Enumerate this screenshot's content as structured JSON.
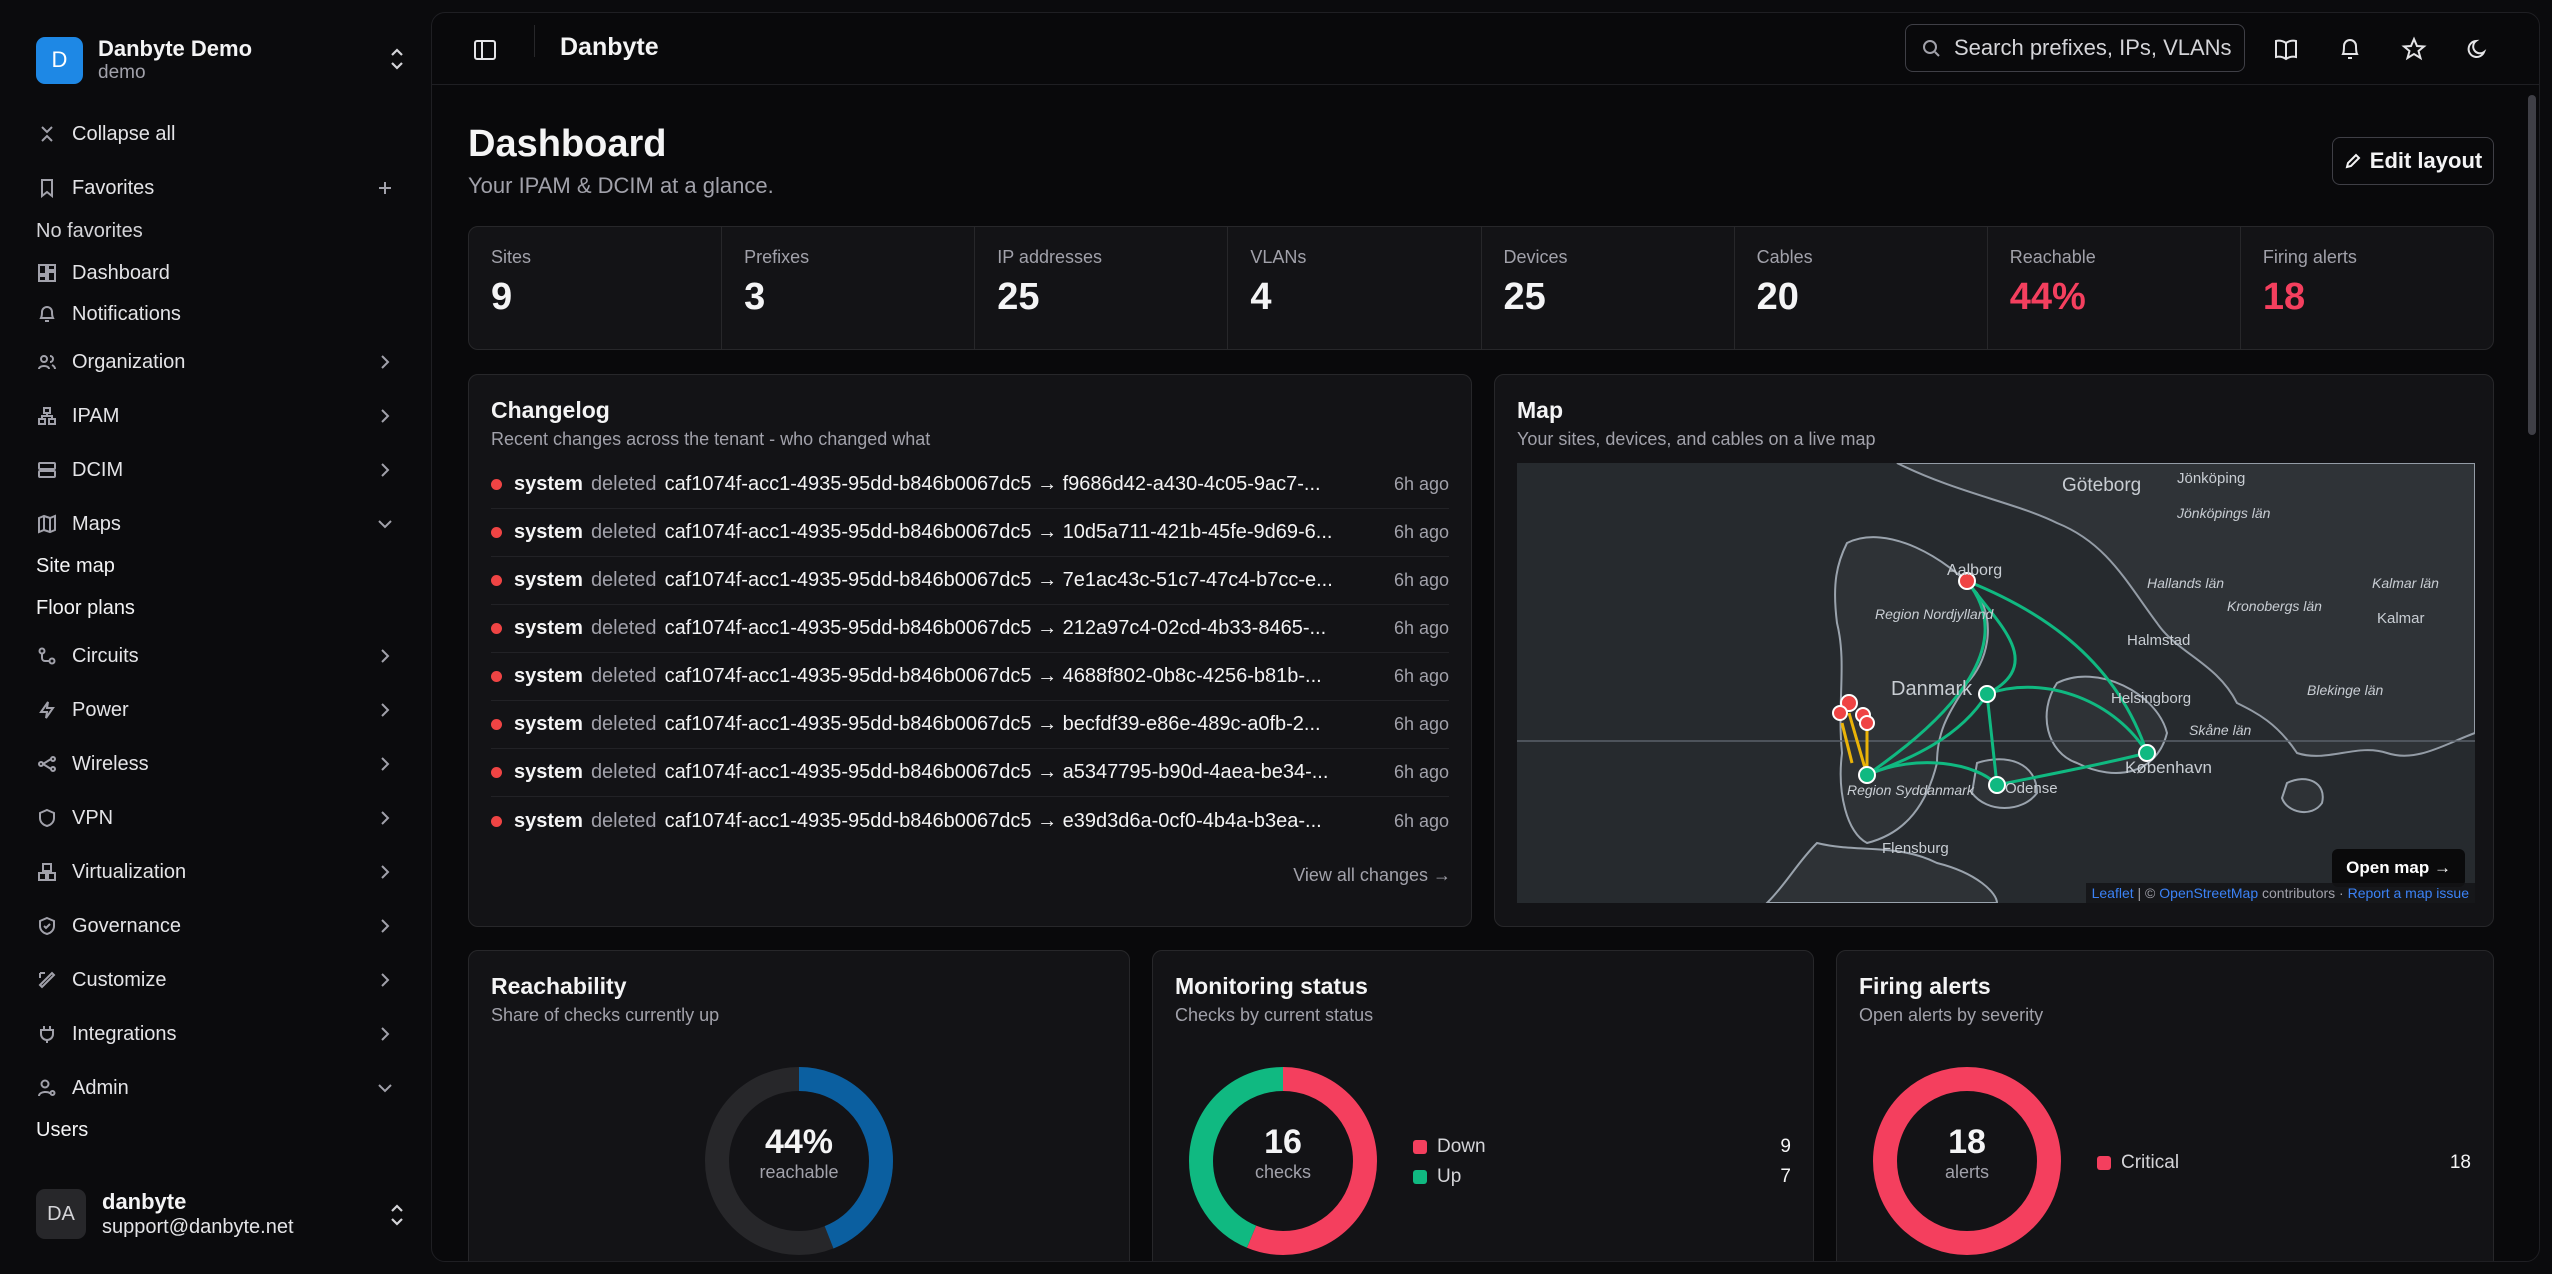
{
  "brand": {
    "logo_letter": "D",
    "name": "Danbyte Demo",
    "subtitle": "demo"
  },
  "sidebar": {
    "collapse_label": "Collapse all",
    "favorites_label": "Favorites",
    "no_favorites": "No favorites",
    "dashboard_label": "Dashboard",
    "notifications_label": "Notifications",
    "organization_label": "Organization",
    "ipam_label": "IPAM",
    "dcim_label": "DCIM",
    "maps_label": "Maps",
    "site_map_label": "Site map",
    "floor_plans_label": "Floor plans",
    "circuits_label": "Circuits",
    "power_label": "Power",
    "wireless_label": "Wireless",
    "vpn_label": "VPN",
    "virtualization_label": "Virtualization",
    "governance_label": "Governance",
    "customize_label": "Customize",
    "integrations_label": "Integrations",
    "admin_label": "Admin",
    "users_label": "Users"
  },
  "user": {
    "initials": "DA",
    "name": "danbyte",
    "email": "support@danbyte.net"
  },
  "topbar": {
    "title": "Danbyte",
    "search_placeholder": "Search prefixes, IPs, VLANs"
  },
  "page": {
    "title": "Dashboard",
    "subtitle": "Your IPAM & DCIM at a glance.",
    "edit_label": "Edit layout"
  },
  "stats": [
    {
      "label": "Sites",
      "value": "9"
    },
    {
      "label": "Prefixes",
      "value": "3"
    },
    {
      "label": "IP addresses",
      "value": "25"
    },
    {
      "label": "VLANs",
      "value": "4"
    },
    {
      "label": "Devices",
      "value": "25"
    },
    {
      "label": "Cables",
      "value": "20"
    },
    {
      "label": "Reachable",
      "value": "44%"
    },
    {
      "label": "Firing alerts",
      "value": "18"
    }
  ],
  "changelog": {
    "title": "Changelog",
    "subtitle": "Recent changes across the tenant - who changed what",
    "view_all": "View all changes →",
    "rows": [
      {
        "user": "system",
        "action": "deleted",
        "target": "caf1074f-acc1-4935-95dd-b846b0067dc5 → f9686d42-a430-4c05-9ac7-...",
        "time": "6h ago"
      },
      {
        "user": "system",
        "action": "deleted",
        "target": "caf1074f-acc1-4935-95dd-b846b0067dc5 → 10d5a711-421b-45fe-9d69-6...",
        "time": "6h ago"
      },
      {
        "user": "system",
        "action": "deleted",
        "target": "caf1074f-acc1-4935-95dd-b846b0067dc5 → 7e1ac43c-51c7-47c4-b7cc-e...",
        "time": "6h ago"
      },
      {
        "user": "system",
        "action": "deleted",
        "target": "caf1074f-acc1-4935-95dd-b846b0067dc5 → 212a97c4-02cd-4b33-8465-...",
        "time": "6h ago"
      },
      {
        "user": "system",
        "action": "deleted",
        "target": "caf1074f-acc1-4935-95dd-b846b0067dc5 → 4688f802-0b8c-4256-b81b-...",
        "time": "6h ago"
      },
      {
        "user": "system",
        "action": "deleted",
        "target": "caf1074f-acc1-4935-95dd-b846b0067dc5 → becfdf39-e86e-489c-a0fb-2...",
        "time": "6h ago"
      },
      {
        "user": "system",
        "action": "deleted",
        "target": "caf1074f-acc1-4935-95dd-b846b0067dc5 → a5347795-b90d-4aea-be34-...",
        "time": "6h ago"
      },
      {
        "user": "system",
        "action": "deleted",
        "target": "caf1074f-acc1-4935-95dd-b846b0067dc5 → e39d3d6a-0cf0-4b4a-b3ea-...",
        "time": "6h ago"
      }
    ]
  },
  "map": {
    "title": "Map",
    "subtitle": "Your sites, devices, and cables on a live map",
    "open_label": "Open map →",
    "labels": {
      "goteborg": "Göteborg",
      "jonkoping": "Jönköping",
      "jonkoping_lan": "Jönköpings län",
      "hallands": "Hallands län",
      "kronobergs": "Kronobergs län",
      "kalmar_lan": "Kalmar län",
      "kalmar": "Kalmar",
      "halmstad": "Halmstad",
      "aalborg": "Aalborg",
      "nordjylland": "Region Nordjylland",
      "danmark": "Danmark",
      "helsingborg": "Helsingborg",
      "skane": "Skåne län",
      "blekinge": "Blekinge län",
      "kobenhavn": "København",
      "syddanmark": "Region Syddanmark",
      "odense": "Odense",
      "flensburg": "Flensburg"
    },
    "attribution": {
      "leaflet": "Leaflet",
      "sep": " | © ",
      "osm": "OpenStreetMap",
      "contributors": " contributors · ",
      "report": "Report a map issue"
    }
  },
  "reachability": {
    "title": "Reachability",
    "subtitle": "Share of checks currently up",
    "percent": 44,
    "value": "44%",
    "label": "reachable"
  },
  "monitoring": {
    "title": "Monitoring status",
    "subtitle": "Checks by current status",
    "total": "16",
    "label": "checks",
    "items": [
      {
        "name": "Down",
        "value": "9",
        "color": "#f43f5e"
      },
      {
        "name": "Up",
        "value": "7",
        "color": "#10b981"
      }
    ]
  },
  "alerts": {
    "title": "Firing alerts",
    "subtitle": "Open alerts by severity",
    "total": "18",
    "label": "alerts",
    "items": [
      {
        "name": "Critical",
        "value": "18",
        "color": "#f43f5e"
      }
    ]
  },
  "colors": {
    "accent_blue": "#1e88e5",
    "danger": "#f43f5e",
    "success": "#10b981",
    "reach_blue": "#0b5fa0"
  }
}
